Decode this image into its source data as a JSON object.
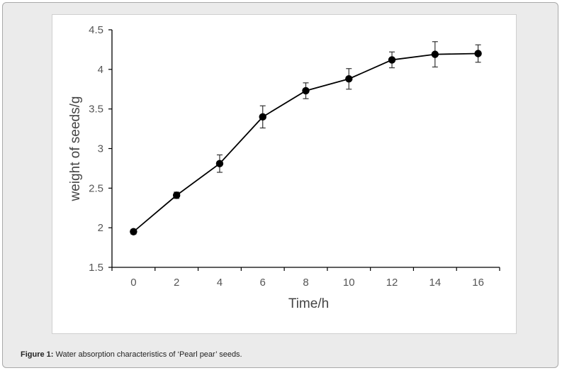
{
  "caption": {
    "label": "Figure 1:",
    "text": "Water absorption characteristics of ‘Pearl pear’ seeds."
  },
  "chart_data": {
    "type": "line",
    "x": [
      0,
      2,
      4,
      6,
      8,
      10,
      12,
      14,
      16
    ],
    "series": [
      {
        "values": [
          1.95,
          2.41,
          2.81,
          3.4,
          3.73,
          3.88,
          4.12,
          4.19,
          4.2
        ],
        "error": [
          0.03,
          0.04,
          0.11,
          0.14,
          0.1,
          0.13,
          0.1,
          0.16,
          0.11
        ]
      }
    ],
    "xlabel": "Time/h",
    "ylabel": "weight of seeds/g",
    "xticks": [
      "0",
      "2",
      "4",
      "6",
      "8",
      "10",
      "12",
      "14",
      "16"
    ],
    "yticks": [
      "1.5",
      "2",
      "2.5",
      "3",
      "3.5",
      "4",
      "4.5"
    ],
    "xlim": [
      -1,
      17
    ],
    "ylim": [
      1.5,
      4.5
    ],
    "grid": false,
    "line_color": "#000000",
    "marker": "filled-circle"
  }
}
